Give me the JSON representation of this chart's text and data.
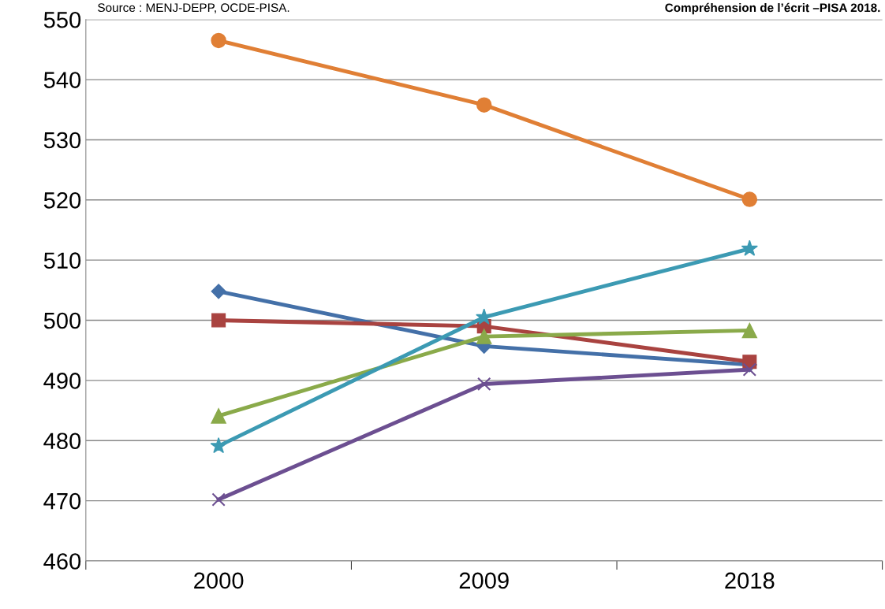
{
  "chart_data": {
    "type": "line",
    "title": "Compréhension de l’écrit –PISA 2018.",
    "annotations": [
      "Source : MENJ-DEPP, OCDE-PISA."
    ],
    "categories": [
      "2000",
      "2009",
      "2018"
    ],
    "series": [
      {
        "color": "#e07f35",
        "marker": "circle",
        "values": [
          546.5,
          535.8,
          520.1
        ]
      },
      {
        "color": "#4470a8",
        "marker": "diamond",
        "values": [
          504.8,
          495.7,
          492.6
        ]
      },
      {
        "color": "#a94340",
        "marker": "square",
        "values": [
          500.0,
          499.0,
          493.1
        ]
      },
      {
        "color": "#8aaa4a",
        "marker": "triangle",
        "values": [
          484.1,
          497.3,
          498.3
        ]
      },
      {
        "color": "#3c9ab3",
        "marker": "star",
        "values": [
          479.1,
          500.5,
          511.9
        ]
      },
      {
        "color": "#6c4f91",
        "marker": "cross",
        "values": [
          470.2,
          489.4,
          491.8
        ]
      }
    ],
    "ylim": [
      460,
      550
    ],
    "yticks": [
      460,
      470,
      480,
      490,
      500,
      510,
      520,
      530,
      540,
      550
    ],
    "grid": "y"
  }
}
